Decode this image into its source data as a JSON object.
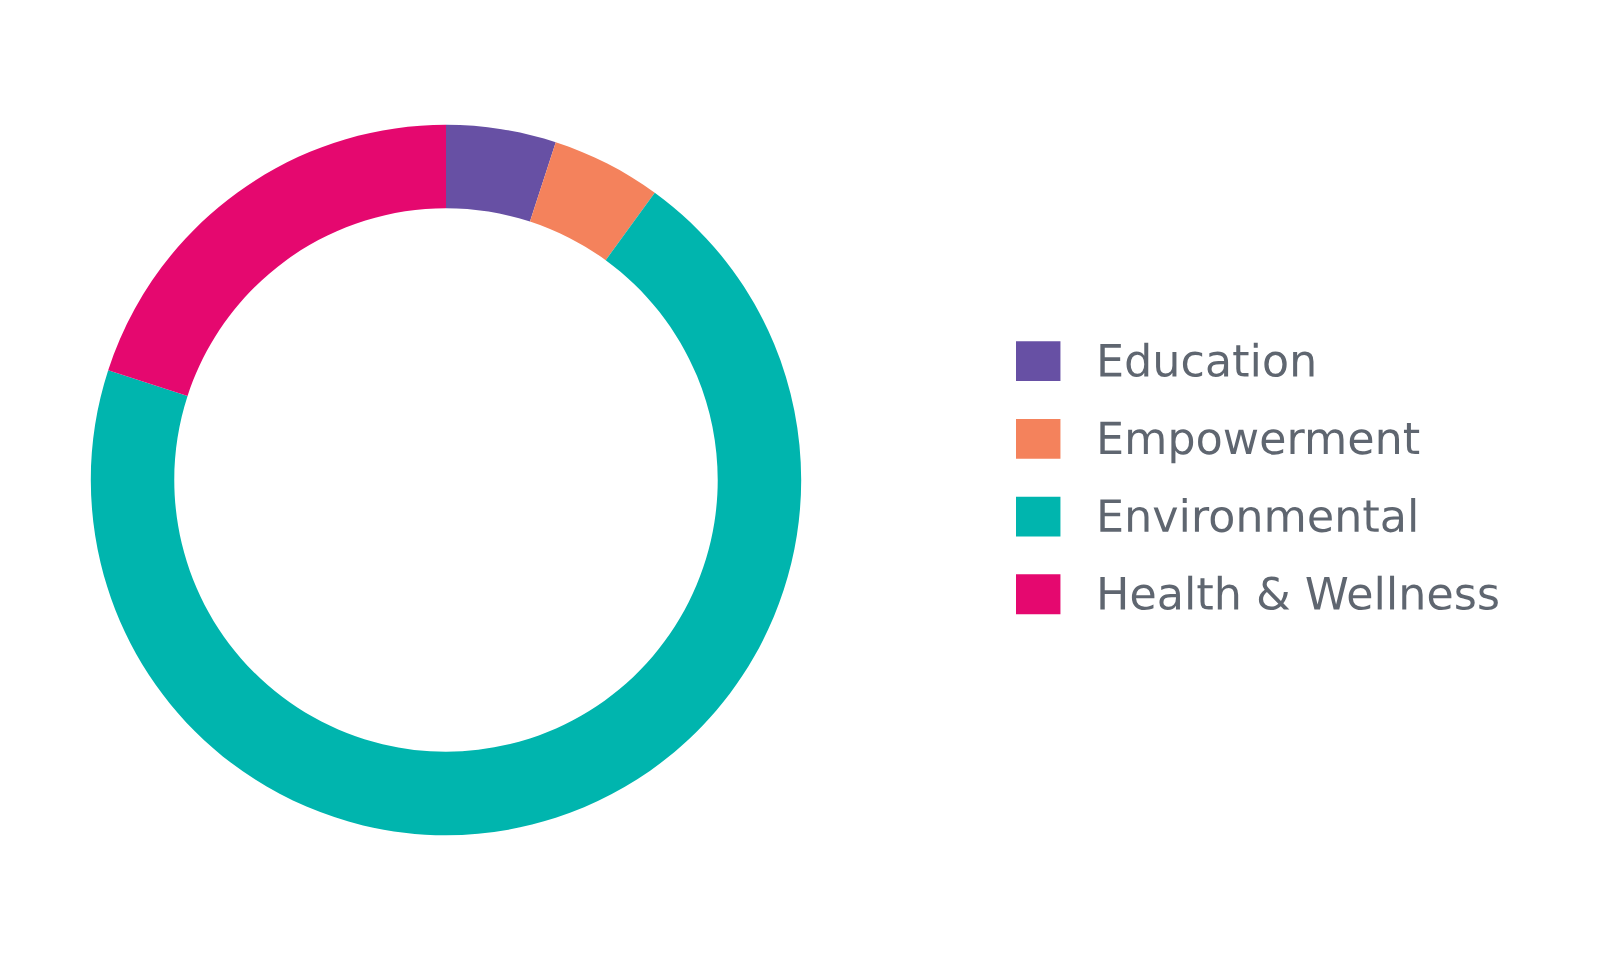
{
  "chart_data": {
    "type": "donut",
    "categories": [
      "Education",
      "Empowerment",
      "Environmental",
      "Health & Wellness"
    ],
    "values": [
      5,
      5,
      70,
      20
    ],
    "colors": [
      "#6750a4",
      "#f4825c",
      "#00b5ae",
      "#e5086f"
    ],
    "legend": "right"
  }
}
